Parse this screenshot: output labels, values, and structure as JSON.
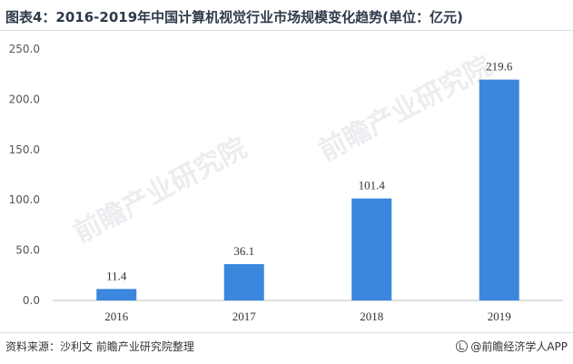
{
  "header": {
    "title": "图表4：2016-2019年中国计算机视觉行业市场规模变化趋势(单位：亿元)"
  },
  "chart_data": {
    "type": "bar",
    "categories": [
      "2016",
      "2017",
      "2018",
      "2019"
    ],
    "values": [
      11.4,
      36.1,
      101.4,
      219.6
    ],
    "value_labels": [
      "11.4",
      "36.1",
      "101.4",
      "219.6"
    ],
    "yticks": [
      "0.0",
      "50.0",
      "100.0",
      "150.0",
      "200.0",
      "250.0"
    ],
    "ylim": [
      0,
      250
    ],
    "xlabel": "",
    "ylabel": "",
    "grid": false,
    "legend": "none",
    "bar_color": "#3a87dd"
  },
  "footer": {
    "source": "资料来源：沙利文 前瞻产业研究院整理",
    "brand": "@前瞻经济学人APP"
  },
  "watermark": {
    "text": "前瞻产业研究院"
  }
}
